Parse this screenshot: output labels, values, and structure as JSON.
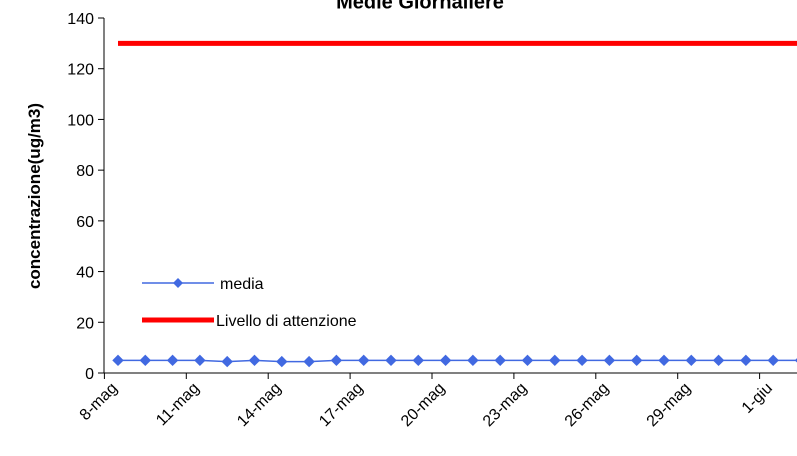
{
  "chart_data": {
    "type": "line",
    "title": "Medie Giornaliere",
    "xlabel": "",
    "ylabel": "concentrazione(ug/m3)",
    "ylim": [
      0,
      140
    ],
    "yticks": [
      0,
      20,
      40,
      60,
      80,
      100,
      120,
      140
    ],
    "x": [
      "8-mag",
      "9-mag",
      "10-mag",
      "11-mag",
      "12-mag",
      "13-mag",
      "14-mag",
      "15-mag",
      "16-mag",
      "17-mag",
      "18-mag",
      "19-mag",
      "20-mag",
      "21-mag",
      "22-mag",
      "23-mag",
      "24-mag",
      "25-mag",
      "26-mag",
      "27-mag",
      "28-mag",
      "29-mag",
      "30-mag",
      "31-mag",
      "1-giu",
      "2-giu"
    ],
    "xtick_labels": [
      "8-mag",
      "11-mag",
      "14-mag",
      "17-mag",
      "20-mag",
      "23-mag",
      "26-mag",
      "29-mag",
      "1-giu"
    ],
    "grid": false,
    "legend_position": "lower-left",
    "series": [
      {
        "name": "media",
        "color": "#4169e1",
        "marker": "diamond",
        "values": [
          5,
          5,
          5,
          5,
          4.5,
          5,
          4.5,
          4.5,
          5,
          5,
          5,
          5,
          5,
          5,
          5,
          5,
          5,
          5,
          5,
          5,
          5,
          5,
          5,
          5,
          5,
          5
        ]
      },
      {
        "name": "Livello di attenzione",
        "color": "#ff0000",
        "marker": "none",
        "values": [
          130,
          130,
          130,
          130,
          130,
          130,
          130,
          130,
          130,
          130,
          130,
          130,
          130,
          130,
          130,
          130,
          130,
          130,
          130,
          130,
          130,
          130,
          130,
          130,
          130,
          130
        ]
      }
    ]
  }
}
